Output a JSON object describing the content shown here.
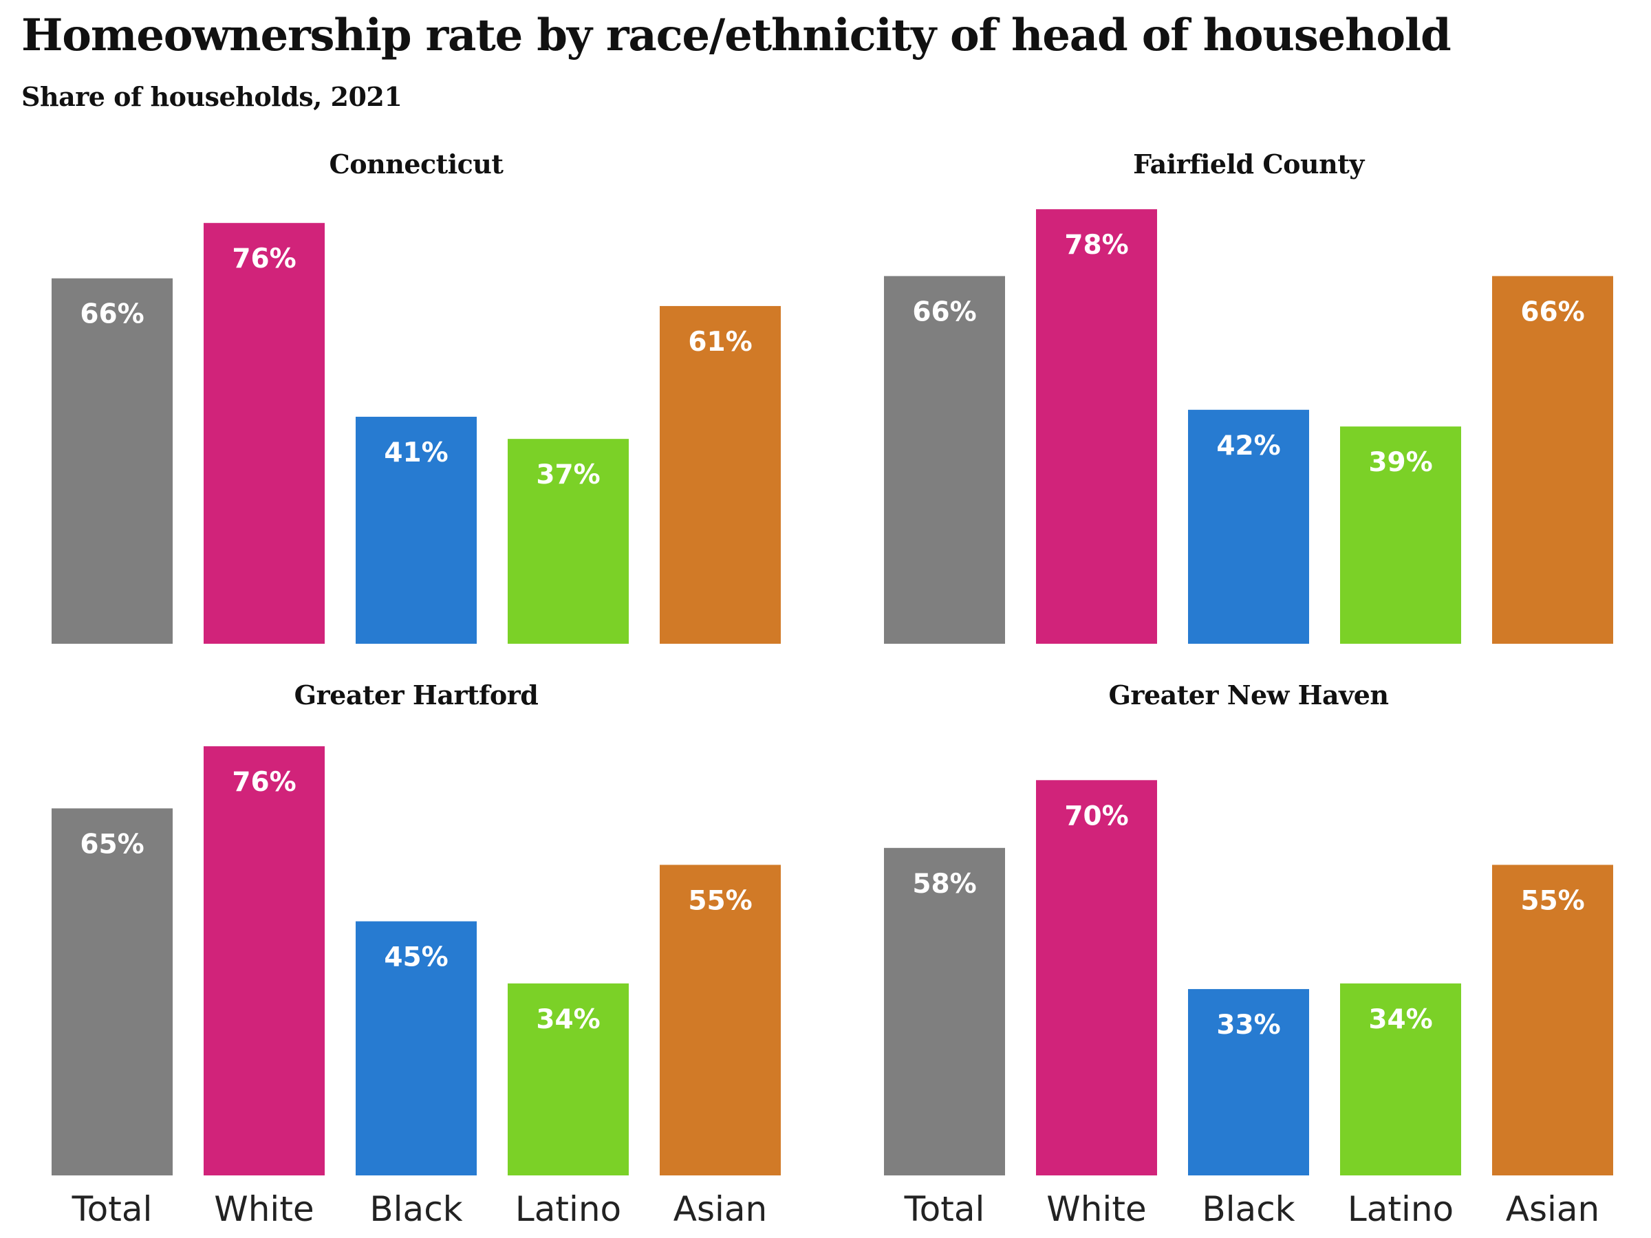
{
  "title": "Homeownership rate by race/ethnicity of head of household",
  "subtitle": "Share of households, 2021",
  "colors": {
    "Total": "#7f7f7f",
    "White": "#d1237a",
    "Black": "#277bd1",
    "Latino": "#7bd127",
    "Asian": "#d17a27"
  },
  "chart_data": [
    {
      "type": "bar",
      "title": "Connecticut",
      "categories": [
        "Total",
        "White",
        "Black",
        "Latino",
        "Asian"
      ],
      "values": [
        66,
        76,
        41,
        37,
        61
      ],
      "labels": [
        "66%",
        "76%",
        "41%",
        "37%",
        "61%"
      ],
      "ylim": [
        0,
        80
      ],
      "xlabel": "",
      "ylabel": "",
      "show_category_labels": false,
      "grid": false
    },
    {
      "type": "bar",
      "title": "Fairfield County",
      "categories": [
        "Total",
        "White",
        "Black",
        "Latino",
        "Asian"
      ],
      "values": [
        66,
        78,
        42,
        39,
        66
      ],
      "labels": [
        "66%",
        "78%",
        "42%",
        "39%",
        "66%"
      ],
      "ylim": [
        0,
        80
      ],
      "xlabel": "",
      "ylabel": "",
      "show_category_labels": false,
      "grid": false
    },
    {
      "type": "bar",
      "title": "Greater Hartford",
      "categories": [
        "Total",
        "White",
        "Black",
        "Latino",
        "Asian"
      ],
      "values": [
        65,
        76,
        45,
        34,
        55
      ],
      "labels": [
        "65%",
        "76%",
        "45%",
        "34%",
        "55%"
      ],
      "ylim": [
        0,
        80
      ],
      "xlabel": "",
      "ylabel": "",
      "show_category_labels": true,
      "grid": false
    },
    {
      "type": "bar",
      "title": "Greater New Haven",
      "categories": [
        "Total",
        "White",
        "Black",
        "Latino",
        "Asian"
      ],
      "values": [
        58,
        70,
        33,
        34,
        55
      ],
      "labels": [
        "58%",
        "70%",
        "33%",
        "34%",
        "55%"
      ],
      "ylim": [
        0,
        80
      ],
      "xlabel": "",
      "ylabel": "",
      "show_category_labels": true,
      "grid": false
    }
  ]
}
